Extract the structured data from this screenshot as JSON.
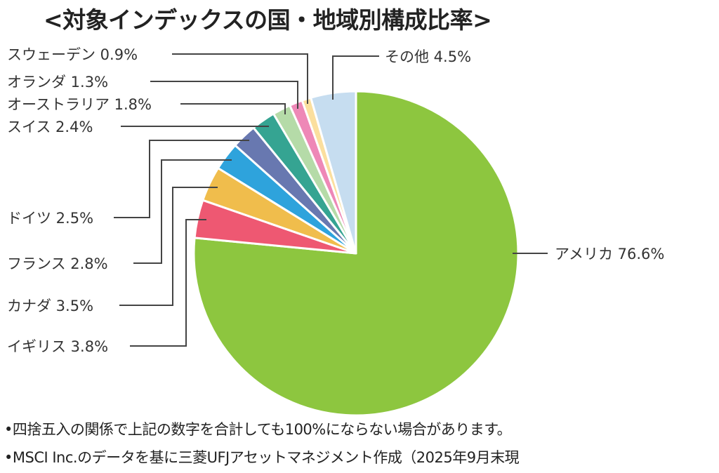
{
  "chart_data": {
    "type": "pie",
    "title": "<対象インデックスの国・地域別構成比率>",
    "start_angle": "12 o'clock",
    "direction": "clockwise",
    "slices": [
      {
        "label": "アメリカ",
        "value": 76.6,
        "text": "アメリカ 76.6%",
        "color": "#8dc63f"
      },
      {
        "label": "イギリス",
        "value": 3.8,
        "text": "イギリス 3.8%",
        "color": "#ee5872"
      },
      {
        "label": "カナダ",
        "value": 3.5,
        "text": "カナダ 3.5%",
        "color": "#f0bd4c"
      },
      {
        "label": "フランス",
        "value": 2.8,
        "text": "フランス 2.8%",
        "color": "#2ea3dc"
      },
      {
        "label": "ドイツ",
        "value": 2.5,
        "text": "ドイツ 2.5%",
        "color": "#6878b0"
      },
      {
        "label": "スイス",
        "value": 2.4,
        "text": "スイス 2.4%",
        "color": "#35a492"
      },
      {
        "label": "オーストラリア",
        "value": 1.8,
        "text": "オーストラリア 1.8%",
        "color": "#b5dba8"
      },
      {
        "label": "オランダ",
        "value": 1.3,
        "text": "オランダ 1.3%",
        "color": "#ee88b7"
      },
      {
        "label": "スウェーデン",
        "value": 0.9,
        "text": "スウェーデン 0.9%",
        "color": "#fbdf9e"
      },
      {
        "label": "その他",
        "value": 4.5,
        "text": "その他 4.5%",
        "color": "#c6ddf0"
      }
    ]
  },
  "notes": [
    "•四捨五入の関係で上記の数字を合計しても100%にならない場合があります。",
    "•MSCI Inc.のデータを基に三菱UFJアセットマネジメント作成（2025年9月末現"
  ]
}
